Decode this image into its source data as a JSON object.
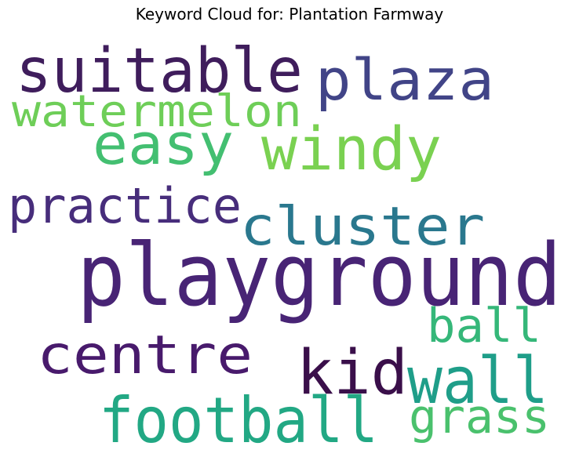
{
  "chart_data": {
    "type": "wordcloud",
    "title": "Keyword Cloud for: Plantation Farmway",
    "words": [
      {
        "text": "playground",
        "weight": 1.0,
        "color": "#482475"
      },
      {
        "text": "suitable",
        "weight": 0.7,
        "color": "#3f1d5c"
      },
      {
        "text": "plaza",
        "weight": 0.64,
        "color": "#414487"
      },
      {
        "text": "cluster",
        "weight": 0.6,
        "color": "#2a788e"
      },
      {
        "text": "football",
        "weight": 0.62,
        "color": "#22a884"
      },
      {
        "text": "easy",
        "weight": 0.56,
        "color": "#43bf71"
      },
      {
        "text": "windy",
        "weight": 0.56,
        "color": "#7ad151"
      },
      {
        "text": "centre",
        "weight": 0.52,
        "color": "#481a6c"
      },
      {
        "text": "kid",
        "weight": 0.58,
        "color": "#3a0f4a"
      },
      {
        "text": "wall",
        "weight": 0.58,
        "color": "#1f9e89"
      },
      {
        "text": "practice",
        "weight": 0.46,
        "color": "#472d7b"
      },
      {
        "text": "watermelon",
        "weight": 0.42,
        "color": "#6ece58"
      },
      {
        "text": "ball",
        "weight": 0.44,
        "color": "#35b779"
      },
      {
        "text": "grass",
        "weight": 0.44,
        "color": "#4ac16d"
      }
    ]
  }
}
